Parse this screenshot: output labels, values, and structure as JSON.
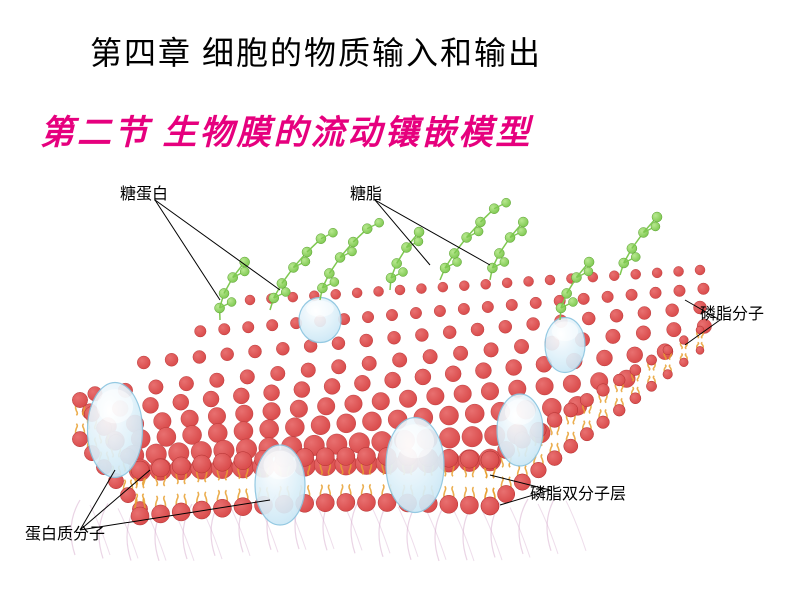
{
  "chapter": {
    "title": "第四章 细胞的物质输入和输出"
  },
  "section": {
    "title": "第二节 生物膜的流动镶嵌模型"
  },
  "labels": {
    "glycoprotein": "糖蛋白",
    "glycolipid": "糖脂",
    "phospholipid_molecule": "磷脂分子",
    "protein_molecule": "蛋白质分子",
    "phospholipid_bilayer": "磷脂双分子层"
  },
  "colors": {
    "lipid_head": "#d94a4a",
    "lipid_head_hl": "#e87070",
    "lipid_tail": "#e8a030",
    "protein": "#c5e5f5",
    "protein_edge": "#8cc5e0",
    "glyco_chain": "#7ec850",
    "fiber": "#d5aacc"
  }
}
